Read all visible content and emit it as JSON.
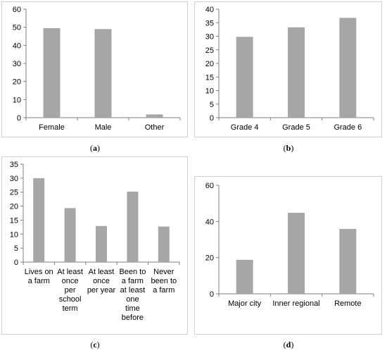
{
  "chart_data": [
    {
      "type": "bar",
      "panel": "a",
      "categories": [
        "Female",
        "Male",
        "Other"
      ],
      "values": [
        49.5,
        49,
        1.8
      ],
      "ylim": [
        0,
        60
      ],
      "yticks": [
        0,
        10,
        20,
        30,
        40,
        50,
        60
      ],
      "bar_color": "#a6a6a6",
      "grid": false
    },
    {
      "type": "bar",
      "panel": "b",
      "categories": [
        "Grade 4",
        "Grade 5",
        "Grade 6"
      ],
      "values": [
        29.8,
        33.3,
        36.8
      ],
      "ylim": [
        0,
        40
      ],
      "yticks": [
        0,
        5,
        10,
        15,
        20,
        25,
        30,
        35,
        40
      ],
      "bar_color": "#a6a6a6",
      "grid": false
    },
    {
      "type": "bar",
      "panel": "c",
      "categories": [
        [
          "Lives on",
          "a farm"
        ],
        [
          "At least",
          "once",
          "per",
          "school",
          "term"
        ],
        [
          "At least",
          "once",
          "per year"
        ],
        [
          "Been to",
          "a farm",
          "at least",
          "one",
          "time",
          "before"
        ],
        [
          "Never",
          "been to",
          "a farm"
        ]
      ],
      "values": [
        30,
        19.3,
        12.9,
        25.2,
        12.7
      ],
      "ylim": [
        0,
        35
      ],
      "yticks": [
        0,
        5,
        10,
        15,
        20,
        25,
        30,
        35
      ],
      "bar_color": "#a6a6a6",
      "grid": false
    },
    {
      "type": "bar",
      "panel": "d",
      "categories": [
        "Major city",
        "Inner regional",
        "Remote"
      ],
      "values": [
        18.8,
        44.8,
        35.9
      ],
      "ylim": [
        0,
        60
      ],
      "yticks": [
        0,
        20,
        40,
        60
      ],
      "bar_color": "#a6a6a6",
      "grid": false
    }
  ],
  "captions": [
    "a",
    "b",
    "c",
    "d"
  ]
}
